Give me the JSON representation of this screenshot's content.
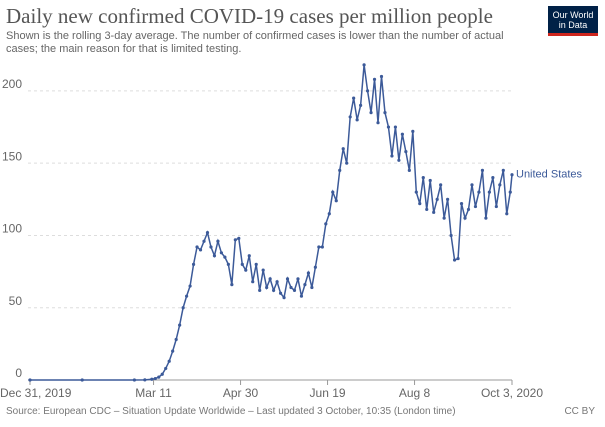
{
  "chart_data": {
    "type": "line",
    "title": "Daily new confirmed COVID-19 cases per million people",
    "subtitle": "Shown is the rolling 3-day average. The number of confirmed cases is lower than the number of actual cases; the main reason for that is limited testing.",
    "source": "Source: European CDC – Situation Update Worldwide – Last updated 3 October, 10:35 (London time)",
    "license": "CC BY",
    "logo": "Our World in Data",
    "x": [
      0,
      30,
      60,
      66,
      70,
      72,
      74,
      76,
      78,
      80,
      82,
      84,
      86,
      88,
      90,
      92,
      94,
      96,
      98,
      100,
      102,
      104,
      106,
      108,
      110,
      112,
      114,
      116,
      118,
      120,
      122,
      124,
      126,
      128,
      130,
      132,
      134,
      136,
      138,
      140,
      142,
      144,
      146,
      148,
      150,
      152,
      154,
      156,
      158,
      160,
      162,
      164,
      166,
      168,
      170,
      172,
      174,
      176,
      178,
      180,
      182,
      184,
      186,
      188,
      190,
      192,
      194,
      196,
      198,
      200,
      202,
      204,
      206,
      208,
      210,
      212,
      214,
      216,
      218,
      220,
      222,
      224,
      226,
      228,
      230,
      232,
      234,
      236,
      238,
      240,
      242,
      244,
      246,
      248,
      250,
      252,
      254,
      256,
      258,
      260,
      262,
      264,
      266,
      268,
      270,
      272,
      274,
      276,
      277
    ],
    "series": [
      {
        "name": "United States",
        "color": "#3c5a99",
        "values": [
          0,
          0,
          0,
          0.1,
          0.5,
          1,
          2,
          4,
          8,
          13,
          20,
          28,
          38,
          50,
          58,
          65,
          80,
          92,
          90,
          96,
          102,
          92,
          86,
          96,
          88,
          85,
          80,
          66,
          97,
          98,
          80,
          76,
          86,
          68,
          80,
          62,
          76,
          64,
          70,
          62,
          68,
          60,
          57,
          70,
          64,
          62,
          70,
          58,
          66,
          74,
          64,
          78,
          92,
          92,
          108,
          115,
          130,
          124,
          145,
          160,
          150,
          182,
          195,
          180,
          190,
          218,
          200,
          185,
          208,
          178,
          210,
          185,
          175,
          155,
          175,
          152,
          170,
          158,
          145,
          172,
          130,
          122,
          140,
          118,
          138,
          116,
          125,
          135,
          112,
          125,
          100,
          83,
          84,
          122,
          112,
          118,
          135,
          120,
          130,
          145,
          112,
          130,
          140,
          120,
          135,
          145,
          115,
          130,
          142
        ]
      }
    ],
    "xlim": [
      0,
      277
    ],
    "xticks": [
      {
        "value": 0,
        "label": "Dec 31, 2019"
      },
      {
        "value": 71,
        "label": "Mar 11"
      },
      {
        "value": 121,
        "label": "Apr 30"
      },
      {
        "value": 171,
        "label": "Jun 19"
      },
      {
        "value": 221,
        "label": "Aug 8"
      },
      {
        "value": 277,
        "label": "Oct 3, 2020"
      }
    ],
    "ylim": [
      0,
      220
    ],
    "yticks": [
      0,
      50,
      100,
      150,
      200
    ],
    "grid": true
  }
}
